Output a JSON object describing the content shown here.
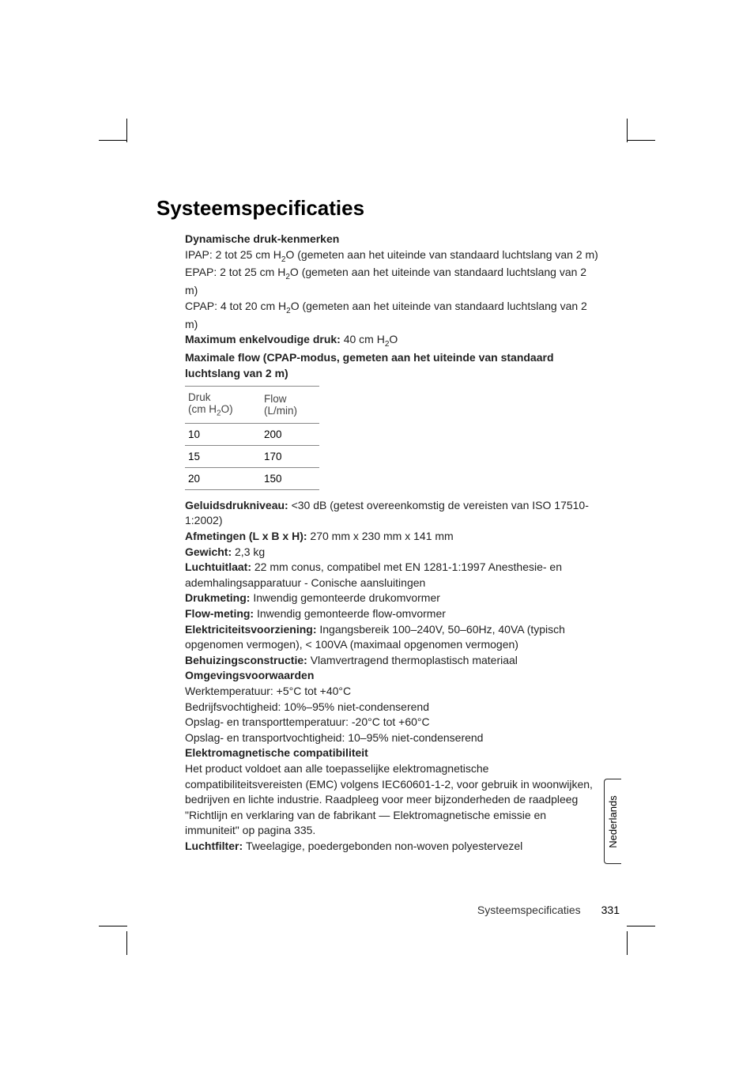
{
  "heading": "Systeemspecificaties",
  "sec1": {
    "title": "Dynamische druk-kenmerken",
    "ipap_pre": "IPAP: 2 tot 25 cm H",
    "ipap_sub": "2",
    "ipap_post": "O (gemeten aan het uiteinde van standaard luchtslang van 2 m)",
    "epap_pre": "EPAP: 2 tot 25 cm H",
    "epap_sub": "2",
    "epap_post": "O (gemeten aan het uiteinde van standaard luchtslang van 2 m)",
    "cpap_pre": "CPAP: 4 tot 20 cm H",
    "cpap_sub": "2",
    "cpap_post": "O (gemeten aan het uiteinde van standaard luchtslang van 2 m)"
  },
  "max_single": {
    "label": "Maximum enkelvoudige druk: ",
    "val_pre": "40 cm H",
    "val_sub": "2",
    "val_post": "O"
  },
  "max_flow_title": "Maximale flow (CPAP-modus, gemeten aan het uiteinde van standaard luchtslang van 2 m)",
  "table": {
    "col1_l1": "Druk",
    "col1_l2_pre": "(cm H",
    "col1_l2_sub": "2",
    "col1_l2_post": "O)",
    "col2_l1": "Flow",
    "col2_l2": "(L/min)",
    "rows": [
      {
        "c1": "10",
        "c2": "200"
      },
      {
        "c1": "15",
        "c2": "170"
      },
      {
        "c1": "20",
        "c2": "150"
      }
    ]
  },
  "sound": {
    "label": "Geluidsdrukniveau: ",
    "val": "<30 dB (getest overeenkomstig de vereisten van ISO 17510-1:2002)"
  },
  "dims": {
    "label": "Afmetingen (L x B x H): ",
    "val": "270 mm x 230 mm x 141 mm"
  },
  "weight": {
    "label": "Gewicht: ",
    "val": "2,3 kg"
  },
  "outlet": {
    "label": "Luchtuitlaat: ",
    "val": "22 mm conus, compatibel met EN 1281-1:1997 Anesthesie- en ademhalingsapparatuur - Conische aansluitingen"
  },
  "pressure": {
    "label": "Drukmeting: ",
    "val": "Inwendig gemonteerde drukomvormer"
  },
  "flow": {
    "label": "Flow-meting: ",
    "val": "Inwendig gemonteerde flow-omvormer"
  },
  "power": {
    "label": "Elektriciteitsvoorziening: ",
    "val": "Ingangsbereik 100–240V, 50–60Hz, 40VA (typisch opgenomen vermogen), < 100VA (maximaal opgenomen vermogen)"
  },
  "housing": {
    "label": "Behuizingsconstructie: ",
    "val": "Vlamvertragend thermoplastisch materiaal"
  },
  "env": {
    "title": "Omgevingsvoorwaarden",
    "l1": "Werktemperatuur: +5°C tot +40°C",
    "l2": "Bedrijfsvochtigheid: 10%–95% niet-condenserend",
    "l3": "Opslag- en transporttemperatuur: -20°C tot +60°C",
    "l4": "Opslag- en transportvochtigheid: 10–95% niet-condenserend"
  },
  "emc": {
    "title": "Elektromagnetische compatibiliteit",
    "text": "Het product voldoet aan alle toepasselijke elektromagnetische compatibiliteitsvereisten (EMC) volgens IEC60601-1-2, voor gebruik in woonwijken, bedrijven en lichte industrie. Raadpleeg voor meer bijzonderheden de raadpleeg \"Richtlijn en verklaring van de fabrikant — Elektromagnetische emissie en immuniteit\" op pagina 335."
  },
  "filter": {
    "label": "Luchtfilter: ",
    "val": "Tweelagige, poedergebonden non-woven polyestervezel"
  },
  "sidetab": "Nederlands",
  "footer_title": "Systeemspecificaties",
  "page_num": "331"
}
